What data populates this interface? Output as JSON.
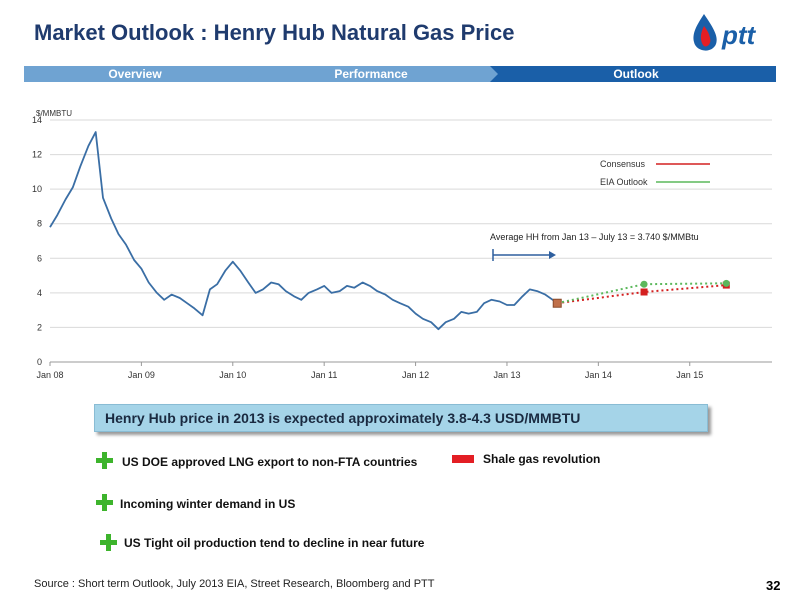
{
  "title": "Market Outlook : Henry Hub Natural Gas Price",
  "logo_text": "ptt",
  "nav": [
    {
      "label": "Overview",
      "active": false
    },
    {
      "label": "Performance",
      "active": false
    },
    {
      "label": "Outlook",
      "active": true
    }
  ],
  "colors": {
    "title": "#1f3b6e",
    "nav_inactive": "#6fa3d2",
    "nav_active": "#1a5fa8",
    "price_line": "#3a6ea5",
    "consensus": "#d42020",
    "eia": "#5cb85c",
    "plus": "#3db42c",
    "minus": "#e31e24"
  },
  "chart_data": {
    "type": "line",
    "ylabel": "$/MMBTU",
    "ylim": [
      0,
      14
    ],
    "yticks": [
      0,
      2,
      4,
      6,
      8,
      10,
      12,
      14
    ],
    "xlim": [
      2008.0,
      2015.9
    ],
    "xticks": [
      {
        "label": "Jan 08",
        "value": 2008.0
      },
      {
        "label": "Jan 09",
        "value": 2009.0
      },
      {
        "label": "Jan 10",
        "value": 2010.0
      },
      {
        "label": "Jan 11",
        "value": 2011.0
      },
      {
        "label": "Jan 12",
        "value": 2012.0
      },
      {
        "label": "Jan 13",
        "value": 2013.0
      },
      {
        "label": "Jan 14",
        "value": 2014.0
      },
      {
        "label": "Jan 15",
        "value": 2015.0
      }
    ],
    "grid": true,
    "series": [
      {
        "name": "",
        "style": "solid",
        "x": [
          2008.0,
          2008.08,
          2008.17,
          2008.25,
          2008.33,
          2008.42,
          2008.5,
          2008.58,
          2008.67,
          2008.75,
          2008.83,
          2008.92,
          2009.0,
          2009.08,
          2009.17,
          2009.25,
          2009.33,
          2009.42,
          2009.5,
          2009.58,
          2009.67,
          2009.75,
          2009.83,
          2009.92,
          2010.0,
          2010.08,
          2010.17,
          2010.25,
          2010.33,
          2010.42,
          2010.5,
          2010.58,
          2010.67,
          2010.75,
          2010.83,
          2010.92,
          2011.0,
          2011.08,
          2011.17,
          2011.25,
          2011.33,
          2011.42,
          2011.5,
          2011.58,
          2011.67,
          2011.75,
          2011.83,
          2011.92,
          2012.0,
          2012.08,
          2012.17,
          2012.25,
          2012.33,
          2012.42,
          2012.5,
          2012.58,
          2012.67,
          2012.75,
          2012.83,
          2012.92,
          2013.0,
          2013.08,
          2013.17,
          2013.25,
          2013.33,
          2013.42,
          2013.5,
          2013.55
        ],
        "y": [
          7.8,
          8.5,
          9.4,
          10.1,
          11.3,
          12.5,
          13.3,
          9.5,
          8.3,
          7.4,
          6.8,
          5.9,
          5.4,
          4.6,
          4.0,
          3.6,
          3.9,
          3.7,
          3.4,
          3.1,
          2.7,
          4.2,
          4.5,
          5.3,
          5.8,
          5.3,
          4.6,
          4.0,
          4.2,
          4.6,
          4.5,
          4.1,
          3.8,
          3.6,
          4.0,
          4.2,
          4.4,
          4.0,
          4.1,
          4.4,
          4.3,
          4.6,
          4.4,
          4.1,
          3.9,
          3.6,
          3.4,
          3.2,
          2.8,
          2.5,
          2.3,
          1.9,
          2.3,
          2.5,
          2.9,
          2.8,
          2.9,
          3.4,
          3.6,
          3.5,
          3.3,
          3.3,
          3.8,
          4.2,
          4.1,
          3.9,
          3.6,
          3.4
        ]
      },
      {
        "name": "Consensus",
        "style": "dotted",
        "x": [
          2013.55,
          2014.5,
          2015.4
        ],
        "y": [
          3.4,
          4.05,
          4.45
        ]
      },
      {
        "name": "EIA Outlook",
        "style": "dotted",
        "x": [
          2013.55,
          2014.5,
          2015.4
        ],
        "y": [
          3.4,
          4.5,
          4.55
        ]
      }
    ],
    "legend_position": "top-right",
    "annotation": "Average HH from Jan 13 – July 13 = 3.740 $/MMBtu"
  },
  "callout": "Henry Hub price in 2013 is expected approximately 3.8-4.3 USD/MMBTU",
  "bullets_plus": [
    "US DOE approved LNG export to non-FTA countries",
    "Incoming winter demand in US",
    "US Tight oil production tend to decline in near future"
  ],
  "bullets_minus": [
    "Shale gas revolution"
  ],
  "source": "Source : Short term Outlook, July 2013 EIA, Street Research, Bloomberg and PTT",
  "page_number": "32"
}
